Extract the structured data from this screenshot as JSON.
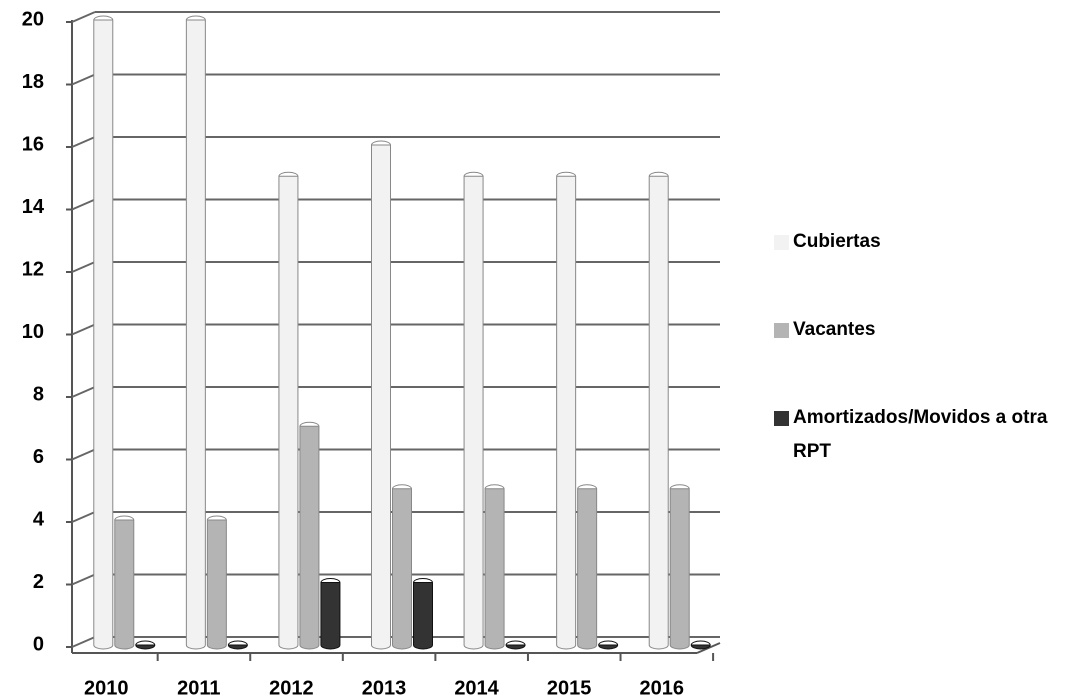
{
  "chart_data": {
    "type": "bar",
    "categories": [
      "2010",
      "2011",
      "2012",
      "2013",
      "2014",
      "2015",
      "2016"
    ],
    "series": [
      {
        "name": "Cubiertas",
        "color": "#f2f2f2",
        "values": [
          20,
          20,
          15,
          16,
          15,
          15,
          15
        ]
      },
      {
        "name": "Vacantes",
        "color": "#b4b4b4",
        "values": [
          4,
          4,
          7,
          5,
          5,
          5,
          5
        ]
      },
      {
        "name": "Amortizados/Movidos a otra RPT",
        "color": "#333333",
        "values": [
          0,
          0,
          2,
          2,
          0,
          0,
          0
        ]
      }
    ],
    "ylim": [
      0,
      20
    ],
    "yticks": [
      0,
      2,
      4,
      6,
      8,
      10,
      12,
      14,
      16,
      18,
      20
    ],
    "grid": true,
    "legend": "right"
  }
}
